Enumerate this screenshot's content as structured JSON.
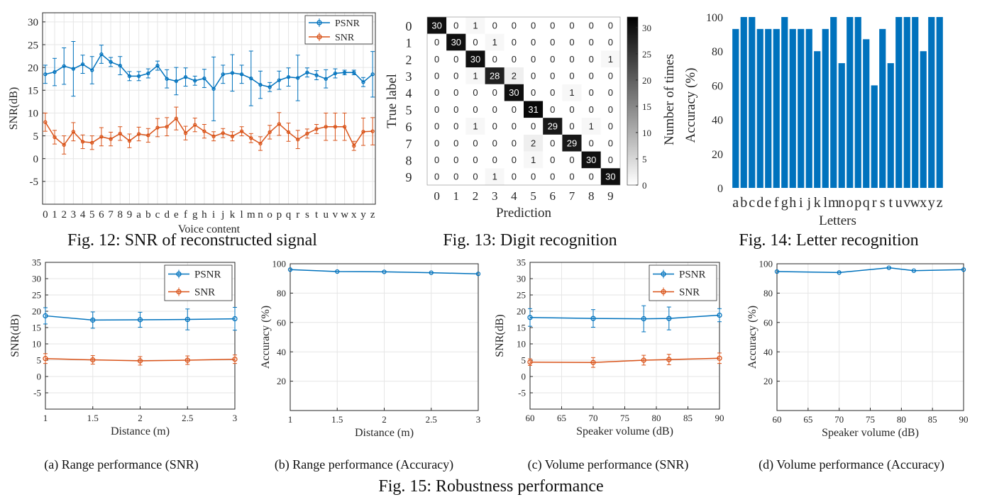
{
  "colors": {
    "psnr": "#0072BD",
    "snr": "#D95319",
    "bar": "#0072BD"
  },
  "captions": {
    "fig12": "Fig. 12: SNR of reconstructed signal",
    "fig13": "Fig. 13: Digit recognition",
    "fig14": "Fig. 14: Letter recognition",
    "fig15": "Fig. 15: Robustness performance",
    "sub_a": "(a) Range performance (SNR)",
    "sub_b": "(b) Range performance (Accuracy)",
    "sub_c": "(c) Volume performance (SNR)",
    "sub_d": "(d) Volume performance (Accuracy)"
  },
  "chart_data": [
    {
      "id": "fig12",
      "type": "line",
      "title": "",
      "xlabel": "Voice content",
      "ylabel": "SNR(dB)",
      "ylim": [
        -10,
        32
      ],
      "yticks": [
        -5,
        0,
        5,
        10,
        15,
        20,
        25,
        30
      ],
      "grid": true,
      "legend": "top-right",
      "categories": [
        "0",
        "1",
        "2",
        "3",
        "4",
        "5",
        "6",
        "7",
        "8",
        "9",
        "a",
        "b",
        "c",
        "d",
        "e",
        "f",
        "g",
        "h",
        "i",
        "j",
        "k",
        "l",
        "m",
        "n",
        "o",
        "p",
        "q",
        "r",
        "s",
        "t",
        "u",
        "v",
        "w",
        "x",
        "y",
        "z"
      ],
      "series": [
        {
          "name": "PSNR",
          "values": [
            18.5,
            19.0,
            20.3,
            19.7,
            20.7,
            19.4,
            22.9,
            21.2,
            20.4,
            18.1,
            18.1,
            18.7,
            20.4,
            17.5,
            17.0,
            17.9,
            17.1,
            17.6,
            15.3,
            18.5,
            18.8,
            18.5,
            17.6,
            16.2,
            15.7,
            17.2,
            17.9,
            17.7,
            18.9,
            18.3,
            17.5,
            18.7,
            18.9,
            18.9,
            16.8,
            18.5
          ],
          "err": [
            2,
            3,
            4,
            6,
            2,
            3,
            2,
            1,
            2,
            1,
            1,
            1,
            1,
            2,
            3,
            2,
            1,
            2,
            7,
            2,
            4,
            2,
            6,
            3,
            1,
            2,
            2,
            5,
            1,
            1,
            2,
            1,
            0.5,
            0.5,
            1,
            5
          ]
        },
        {
          "name": "SNR",
          "values": [
            8.0,
            4.7,
            3.0,
            5.9,
            3.7,
            3.5,
            4.8,
            4.3,
            5.5,
            3.9,
            5.4,
            5.1,
            6.8,
            7.0,
            8.8,
            5.6,
            7.4,
            6.0,
            4.9,
            5.6,
            4.9,
            6.0,
            4.5,
            3.3,
            5.8,
            7.6,
            5.8,
            4.2,
            5.5,
            6.5,
            7.0,
            7.0,
            7.0,
            2.8,
            5.9,
            6.0
          ],
          "err": [
            2,
            1.5,
            2,
            2,
            1.5,
            1.5,
            2,
            1.5,
            1.5,
            1.5,
            1.5,
            1.5,
            2,
            2,
            2.5,
            1.5,
            1.5,
            1.5,
            1,
            1,
            1,
            1,
            1,
            1.5,
            1.5,
            2.5,
            2,
            2,
            1,
            1,
            3,
            3,
            3,
            1,
            3,
            3
          ]
        }
      ]
    },
    {
      "id": "fig13",
      "type": "heatmap",
      "xlabel": "Prediction",
      "ylabel": "True label",
      "colorbar_label": "Number of times",
      "colorbar_ticks": [
        0,
        5,
        10,
        15,
        20,
        25,
        30
      ],
      "vmax": 32,
      "labels": [
        "0",
        "1",
        "2",
        "3",
        "4",
        "5",
        "6",
        "7",
        "8",
        "9"
      ],
      "matrix": [
        [
          30,
          0,
          1,
          0,
          0,
          0,
          0,
          0,
          0,
          0
        ],
        [
          0,
          30,
          0,
          1,
          0,
          0,
          0,
          0,
          0,
          0
        ],
        [
          0,
          0,
          30,
          0,
          0,
          0,
          0,
          0,
          0,
          1
        ],
        [
          0,
          0,
          1,
          28,
          2,
          0,
          0,
          0,
          0,
          0
        ],
        [
          0,
          0,
          0,
          0,
          30,
          0,
          0,
          1,
          0,
          0
        ],
        [
          0,
          0,
          0,
          0,
          0,
          31,
          0,
          0,
          0,
          0
        ],
        [
          0,
          0,
          1,
          0,
          0,
          0,
          29,
          0,
          1,
          0
        ],
        [
          0,
          0,
          0,
          0,
          0,
          2,
          0,
          29,
          0,
          0
        ],
        [
          0,
          0,
          0,
          0,
          0,
          1,
          0,
          0,
          30,
          0
        ],
        [
          0,
          0,
          0,
          1,
          0,
          0,
          0,
          0,
          0,
          30
        ]
      ]
    },
    {
      "id": "fig14",
      "type": "bar",
      "xlabel": "Letters",
      "ylabel": "Accuracy (%)",
      "ylim": [
        0,
        100
      ],
      "yticks": [
        0,
        20,
        40,
        60,
        80,
        100
      ],
      "categories": [
        "a",
        "b",
        "c",
        "d",
        "e",
        "f",
        "g",
        "h",
        "i",
        "j",
        "k",
        "l",
        "m",
        "n",
        "o",
        "p",
        "q",
        "r",
        "s",
        "t",
        "u",
        "v",
        "w",
        "x",
        "y",
        "z"
      ],
      "values": [
        93,
        100,
        100,
        93,
        93,
        93,
        100,
        93,
        93,
        93,
        80,
        93,
        100,
        73,
        100,
        100,
        87,
        60,
        93,
        73,
        100,
        100,
        100,
        80,
        100,
        100
      ]
    },
    {
      "id": "fig15a",
      "type": "line",
      "xlabel": "Distance (m)",
      "ylabel": "SNR(dB)",
      "xlim": [
        1,
        3
      ],
      "xticks": [
        1,
        1.5,
        2,
        2.5,
        3
      ],
      "xtick_labels": [
        "1",
        "1.5",
        "2",
        "2.5",
        "3"
      ],
      "ylim": [
        -10,
        35
      ],
      "yticks": [
        -5,
        0,
        5,
        10,
        15,
        20,
        25,
        30,
        35
      ],
      "legend": "top-right",
      "x": [
        1,
        1.5,
        2,
        2.5,
        3
      ],
      "series": [
        {
          "name": "PSNR",
          "values": [
            18.6,
            17.3,
            17.4,
            17.5,
            17.7
          ],
          "err": [
            2.5,
            2.5,
            2.3,
            3.2,
            3.5
          ]
        },
        {
          "name": "SNR",
          "values": [
            5.5,
            5.1,
            4.8,
            5.0,
            5.3
          ],
          "err": [
            1.5,
            1.3,
            1.3,
            1.3,
            1.3
          ]
        }
      ]
    },
    {
      "id": "fig15b",
      "type": "line",
      "xlabel": "Distance (m)",
      "ylabel": "Accuracy (%)",
      "xlim": [
        1,
        3
      ],
      "xticks": [
        1,
        1.5,
        2,
        2.5,
        3
      ],
      "xtick_labels": [
        "1",
        "1.5",
        "2",
        "2.5",
        "3"
      ],
      "ylim": [
        0,
        100
      ],
      "yticks": [
        20,
        40,
        60,
        80,
        100
      ],
      "x": [
        1,
        1.5,
        2,
        2.5,
        3
      ],
      "series": [
        {
          "name": "Accuracy",
          "values": [
            96.0,
            94.7,
            94.5,
            93.9,
            93.1
          ]
        }
      ]
    },
    {
      "id": "fig15c",
      "type": "line",
      "xlabel": "Speaker volume (dB)",
      "ylabel": "SNR(dB)",
      "xlim": [
        60,
        90
      ],
      "xticks": [
        60,
        65,
        70,
        75,
        80,
        85,
        90
      ],
      "xtick_labels": [
        "60",
        "65",
        "70",
        "75",
        "80",
        "85",
        "90"
      ],
      "ylim": [
        -10,
        35
      ],
      "yticks": [
        -5,
        0,
        5,
        10,
        15,
        20,
        25,
        30,
        35
      ],
      "legend": "top-right",
      "x": [
        60,
        70,
        78,
        82,
        90
      ],
      "series": [
        {
          "name": "PSNR",
          "values": [
            18.1,
            17.8,
            17.7,
            17.8,
            18.8
          ],
          "err": [
            2.7,
            2.7,
            4.0,
            3.5,
            2.0
          ]
        },
        {
          "name": "SNR",
          "values": [
            4.4,
            4.3,
            5.0,
            5.2,
            5.6
          ],
          "err": [
            1.0,
            1.5,
            1.5,
            1.6,
            1.6
          ]
        }
      ]
    },
    {
      "id": "fig15d",
      "type": "line",
      "xlabel": "Speaker volume (dB)",
      "ylabel": "Accuracy (%)",
      "xlim": [
        60,
        90
      ],
      "xticks": [
        60,
        65,
        70,
        75,
        80,
        85,
        90
      ],
      "xtick_labels": [
        "60",
        "65",
        "70",
        "75",
        "80",
        "85",
        "90"
      ],
      "ylim": [
        0,
        100
      ],
      "yticks": [
        20,
        40,
        60,
        80,
        100
      ],
      "x": [
        60,
        70,
        78,
        82,
        90
      ],
      "series": [
        {
          "name": "Accuracy",
          "values": [
            94.7,
            94.0,
            97.3,
            95.3,
            96.0
          ]
        }
      ]
    }
  ]
}
